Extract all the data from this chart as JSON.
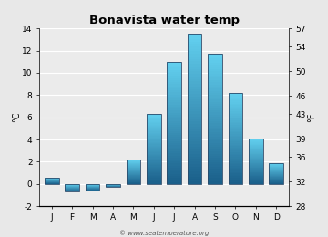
{
  "title": "Bonavista water temp",
  "months": [
    "J",
    "F",
    "M",
    "A",
    "M",
    "J",
    "J",
    "A",
    "S",
    "O",
    "N",
    "D"
  ],
  "values_c": [
    0.6,
    -0.7,
    -0.6,
    -0.3,
    2.2,
    6.3,
    11.0,
    13.5,
    11.7,
    8.2,
    4.1,
    1.9
  ],
  "ylim_c": [
    -2,
    14
  ],
  "ylim_f": [
    28,
    57
  ],
  "yticks_c": [
    -2,
    0,
    2,
    4,
    6,
    8,
    10,
    12,
    14
  ],
  "yticks_f": [
    28,
    32,
    36,
    39,
    43,
    46,
    50,
    54,
    57
  ],
  "ylabel_left": "°C",
  "ylabel_right": "°F",
  "bar_color_top": "#62d0ef",
  "bar_color_bottom": "#1a5f8a",
  "bg_color": "#e8e8e8",
  "plot_bg": "#ebebeb",
  "watermark": "© www.seatemperature.org",
  "title_fontsize": 9.5,
  "label_fontsize": 7,
  "tick_fontsize": 6.5
}
